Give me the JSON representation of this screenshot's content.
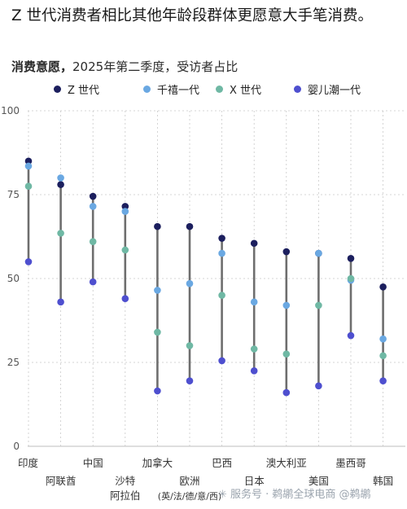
{
  "page": {
    "title": "Z 世代消费者相比其他年龄段群体更愿意大手笔消费。",
    "subtitle_bold": "消费意愿，",
    "subtitle_rest": "2025年第二季度，受访者占比",
    "watermark": "✳ 服务号 · 鹈鹕全球电商 @鹈鹕"
  },
  "chart_data": {
    "type": "scatter",
    "title": "",
    "ylabel": "",
    "xlabel": "",
    "ylim": [
      0,
      100
    ],
    "yticks": [
      0,
      25,
      50,
      75,
      100
    ],
    "grid": true,
    "legend_position": "top",
    "categories": [
      "印度",
      "阿联酋",
      "中国",
      "沙特阿拉伯",
      "加拿大",
      "欧洲（英/法/德/意/西）",
      "巴西",
      "日本",
      "澳大利亚",
      "美国",
      "墨西哥",
      "韩国"
    ],
    "category_labels": [
      [
        "印度"
      ],
      [
        "阿联酋"
      ],
      [
        "中国"
      ],
      [
        "沙特",
        "阿拉伯"
      ],
      [
        "加拿大"
      ],
      [
        "欧洲",
        "(英/法/德/意/西)"
      ],
      [
        "巴西"
      ],
      [
        "日本"
      ],
      [
        "澳大利亚"
      ],
      [
        "美国"
      ],
      [
        "墨西哥"
      ],
      [
        "韩国"
      ]
    ],
    "series": [
      {
        "name": "Z 世代",
        "color": "#1c1f5e",
        "values": [
          85,
          78,
          74.5,
          71.5,
          65.5,
          65.5,
          62,
          60.5,
          58,
          57.5,
          56,
          47.5
        ]
      },
      {
        "name": "千禧一代",
        "color": "#6aa8e2",
        "values": [
          83.5,
          80,
          71.5,
          70,
          46.5,
          48.5,
          57.5,
          43,
          42,
          57.5,
          49.5,
          32
        ]
      },
      {
        "name": "X 世代",
        "color": "#6fb8a4",
        "values": [
          77.5,
          63.5,
          61,
          58.5,
          34,
          30,
          45,
          29,
          27.5,
          42,
          50,
          27
        ]
      },
      {
        "name": "婴儿潮一代",
        "color": "#4e4fcf",
        "values": [
          55,
          43,
          49,
          44,
          16.5,
          19.5,
          25.5,
          22.5,
          16,
          18,
          33,
          19.5
        ]
      }
    ]
  }
}
